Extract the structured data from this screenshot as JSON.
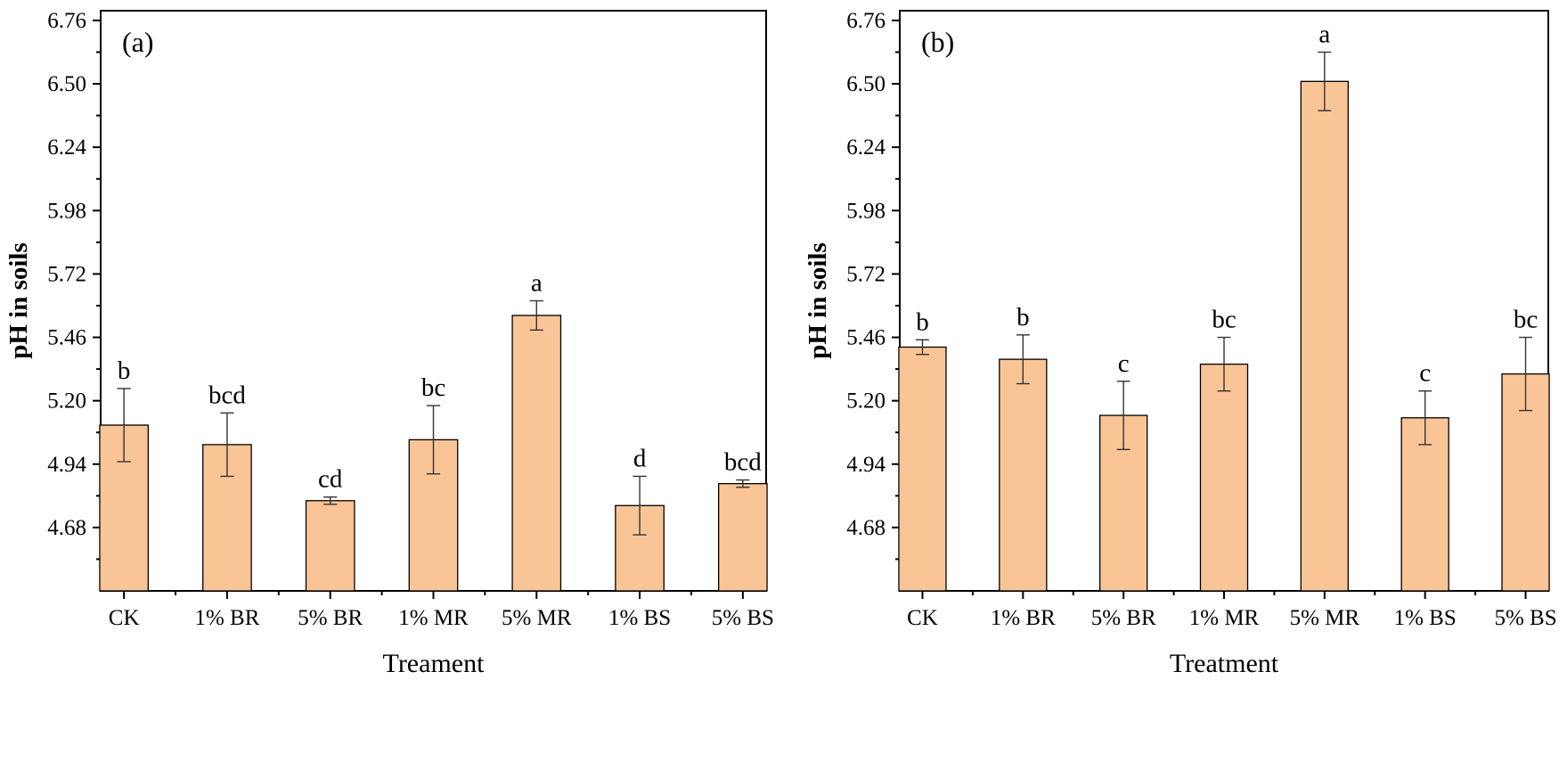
{
  "style": {
    "bar_fill": "#F9C496",
    "bar_stroke": "#000000",
    "axis_color": "#000000"
  },
  "chart_data": [
    {
      "type": "bar",
      "panel_label": "(a)",
      "title": "",
      "xlabel": "Treament",
      "ylabel": "pH in soils",
      "ylim": [
        4.42,
        6.8
      ],
      "yticks": [
        "4.68",
        "4.94",
        "5.20",
        "5.46",
        "5.72",
        "5.98",
        "6.24",
        "6.50",
        "6.76"
      ],
      "grid": false,
      "categories": [
        "CK",
        "1% BR",
        "5% BR",
        "1% MR",
        "5% MR",
        "1% BS",
        "5% BS"
      ],
      "values": [
        5.1,
        5.02,
        4.79,
        5.04,
        5.55,
        4.77,
        4.86
      ],
      "errors": [
        0.15,
        0.13,
        0.015,
        0.14,
        0.06,
        0.12,
        0.015
      ],
      "significance": [
        "b",
        "bcd",
        "cd",
        "bc",
        "a",
        "d",
        "bcd"
      ]
    },
    {
      "type": "bar",
      "panel_label": "(b)",
      "title": "",
      "xlabel": "Treatment",
      "ylabel": "pH in soils",
      "ylim": [
        4.42,
        6.8
      ],
      "yticks": [
        "4.68",
        "4.94",
        "5.20",
        "5.46",
        "5.72",
        "5.98",
        "6.24",
        "6.50",
        "6.76"
      ],
      "grid": false,
      "categories": [
        "CK",
        "1% BR",
        "5% BR",
        "1% MR",
        "5% MR",
        "1% BS",
        "5% BS"
      ],
      "values": [
        5.42,
        5.37,
        5.14,
        5.35,
        6.51,
        5.13,
        5.31
      ],
      "errors": [
        0.03,
        0.1,
        0.14,
        0.11,
        0.12,
        0.11,
        0.15
      ],
      "significance": [
        "b",
        "b",
        "c",
        "bc",
        "a",
        "c",
        "bc"
      ]
    }
  ]
}
